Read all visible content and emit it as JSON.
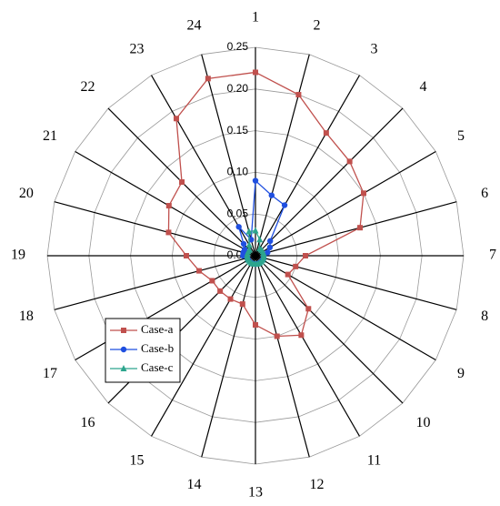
{
  "chart_data": {
    "type": "radar",
    "categories": [
      "1",
      "2",
      "3",
      "4",
      "5",
      "6",
      "7",
      "8",
      "9",
      "10",
      "11",
      "12",
      "13",
      "14",
      "15",
      "16",
      "17",
      "18",
      "19",
      "20",
      "21",
      "22",
      "23",
      "24"
    ],
    "ylim": [
      0,
      0.25
    ],
    "yticks": [
      {
        "value": 0,
        "label": "0.00"
      },
      0.05,
      {
        "value": 0.1,
        "label": "0.10"
      },
      0.15,
      {
        "value": 0.2,
        "label": "0.20"
      },
      0.25
    ],
    "grid": true,
    "legend": "lower-left",
    "series": [
      {
        "name": "Case-a",
        "color": "#c0504d",
        "marker": "square",
        "values": [
          0.22,
          0.2,
          0.17,
          0.16,
          0.15,
          0.13,
          0.06,
          0.05,
          0.045,
          0.09,
          0.11,
          0.1,
          0.083,
          0.06,
          0.06,
          0.06,
          0.06,
          0.07,
          0.083,
          0.108,
          0.12,
          0.125,
          0.19,
          0.22
        ]
      },
      {
        "name": "Case-b",
        "color": "#1f4fe0",
        "marker": "circle",
        "values": [
          0.09,
          0.075,
          0.07,
          0.025,
          0.02,
          0.015,
          0.01,
          0.01,
          0.01,
          0.01,
          0.01,
          0.01,
          0.01,
          0.01,
          0.01,
          0.01,
          0.01,
          0.01,
          0.015,
          0.015,
          0.015,
          0.02,
          0.04,
          0.02
        ]
      },
      {
        "name": "Case-c",
        "color": "#2ca58d",
        "marker": "triangle",
        "values": [
          0.03,
          0.02,
          0.01,
          0.01,
          0.01,
          0.01,
          0.01,
          0.01,
          0.01,
          0.01,
          0.01,
          0.01,
          0.01,
          0.01,
          0.01,
          0.01,
          0.01,
          0.01,
          0.01,
          0.01,
          0.01,
          0.01,
          0.015,
          0.03
        ]
      }
    ]
  }
}
